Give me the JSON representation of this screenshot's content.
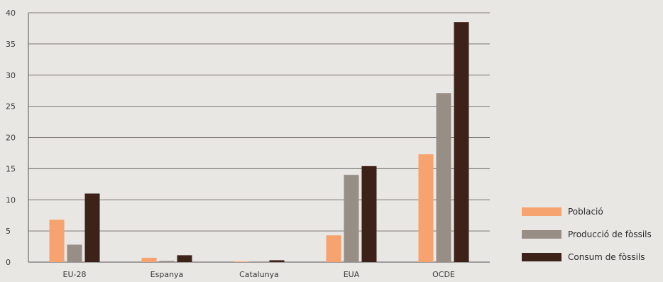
{
  "chart_data": {
    "type": "bar",
    "categories": [
      "EU-28",
      "Espanya",
      "Catalunya",
      "EUA",
      "OCDE"
    ],
    "series": [
      {
        "name": "Població",
        "color": "#f6a36f",
        "values": [
          6.8,
          0.7,
          0.1,
          4.3,
          17.3
        ]
      },
      {
        "name": "Producció de fòssils",
        "color": "#978e86",
        "values": [
          2.8,
          0.2,
          0.1,
          14.0,
          27.1
        ]
      },
      {
        "name": "Consum de fòssils",
        "color": "#3c2218",
        "values": [
          11.0,
          1.1,
          0.3,
          15.4,
          38.5
        ]
      }
    ],
    "ylim": [
      0,
      40
    ],
    "yticks": [
      "0",
      "5",
      "10",
      "15",
      "20",
      "25",
      "30",
      "35",
      "40"
    ],
    "grid": true,
    "legend_position": "right-bottom"
  }
}
